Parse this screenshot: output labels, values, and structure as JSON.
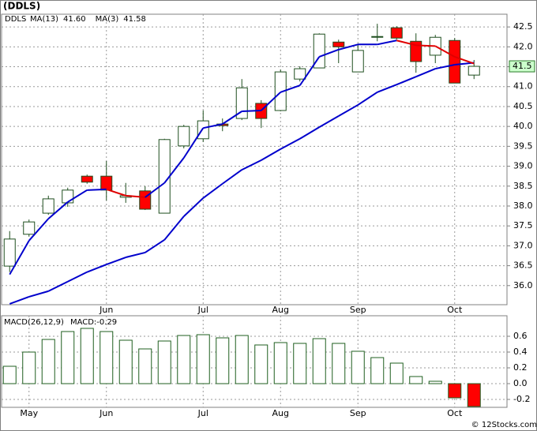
{
  "chart_data": [
    {
      "type": "candlestick",
      "title": "(DDLS)",
      "symbol": "DDLS",
      "categories": [
        null,
        null,
        null,
        null,
        null,
        "Jun",
        null,
        null,
        null,
        null,
        "Jul",
        null,
        null,
        null,
        "Aug",
        null,
        null,
        null,
        "Sep",
        null,
        null,
        null,
        null,
        "Oct",
        null
      ],
      "open": [
        36.49,
        37.29,
        37.82,
        38.08,
        38.75,
        38.75,
        38.22,
        38.38,
        37.82,
        39.51,
        39.69,
        40.06,
        40.2,
        40.58,
        40.4,
        41.19,
        41.47,
        42.12,
        41.37,
        42.24,
        42.48,
        42.14,
        41.79,
        42.16,
        41.29
      ],
      "high": [
        37.37,
        37.66,
        38.26,
        38.46,
        38.79,
        39.13,
        38.58,
        38.5,
        39.69,
        40.04,
        40.4,
        40.2,
        41.19,
        40.66,
        41.43,
        41.51,
        42.34,
        42.18,
        42.08,
        42.58,
        42.52,
        42.34,
        42.3,
        42.22,
        41.67
      ],
      "low": [
        36.34,
        37.23,
        37.78,
        37.98,
        38.56,
        38.14,
        38.08,
        37.9,
        37.82,
        39.45,
        39.61,
        39.88,
        40.16,
        39.96,
        40.38,
        41.13,
        41.47,
        41.59,
        41.37,
        42.14,
        42.18,
        41.35,
        41.59,
        41.09,
        41.19
      ],
      "close": [
        37.17,
        37.6,
        38.18,
        38.4,
        38.6,
        38.4,
        38.26,
        37.92,
        39.67,
        40.0,
        40.14,
        40.02,
        40.97,
        40.2,
        41.37,
        41.45,
        42.32,
        42.0,
        41.91,
        42.26,
        42.22,
        41.63,
        42.24,
        41.09,
        41.51
      ],
      "up_color": "#ffffff",
      "down_color": "#ff0000",
      "edge_color": "#1f4f1f",
      "series": [
        {
          "name": "MA(13)",
          "last_label": "41.60",
          "color": "#0000cc",
          "values": [
            35.54,
            35.72,
            35.86,
            36.1,
            36.34,
            36.53,
            36.71,
            36.83,
            37.15,
            37.74,
            38.2,
            38.56,
            38.91,
            39.15,
            39.43,
            39.69,
            39.98,
            40.26,
            40.54,
            40.86,
            41.05,
            41.25,
            41.45,
            41.55,
            41.6
          ]
        },
        {
          "name": "MA(3)",
          "last_label": "41.58",
          "color": "#0000cc",
          "down_color": "#e00000",
          "values": [
            36.28,
            37.13,
            37.68,
            38.1,
            38.4,
            38.42,
            38.26,
            38.22,
            38.58,
            39.21,
            39.96,
            40.06,
            40.38,
            40.4,
            40.86,
            41.03,
            41.75,
            41.93,
            42.06,
            42.06,
            42.16,
            42.04,
            42.02,
            41.75,
            41.58
          ]
        }
      ],
      "last_price": {
        "value": 41.51,
        "label": "41.5"
      },
      "last_color": "#ccffcc",
      "ylim": [
        35.52,
        42.82
      ],
      "yticks": [
        {
          "value": 36,
          "label": "36.0"
        },
        36.5,
        {
          "value": 37,
          "label": "37.0"
        },
        37.5,
        {
          "value": 38,
          "label": "38.0"
        },
        38.5,
        {
          "value": 39,
          "label": "39.0"
        },
        39.5,
        {
          "value": 40,
          "label": "40.0"
        },
        40.5,
        {
          "value": 41,
          "label": "41.0"
        },
        41.5,
        {
          "value": 42,
          "label": "42.0"
        },
        42.5
      ],
      "grid": true
    },
    {
      "type": "bar",
      "title": "MACD(26,12,9)",
      "legend_label": "MACD:-0.29",
      "categories": [
        null,
        "May",
        null,
        null,
        null,
        "Jun",
        null,
        null,
        null,
        null,
        "Jul",
        null,
        null,
        null,
        "Aug",
        null,
        null,
        null,
        "Sep",
        null,
        null,
        null,
        null,
        "Oct",
        null
      ],
      "values": [
        0.22,
        0.4,
        0.56,
        0.66,
        0.7,
        0.66,
        0.55,
        0.44,
        0.54,
        0.61,
        0.62,
        0.58,
        0.61,
        0.49,
        0.52,
        0.51,
        0.57,
        0.51,
        0.41,
        0.33,
        0.26,
        0.09,
        0.03,
        -0.18,
        -0.29
      ],
      "color": "#ffffff",
      "neg_color": "#ff0000",
      "edge_color": "#1f5f1f",
      "ylim": [
        -0.3,
        0.86
      ],
      "yticks": [
        -0.2,
        {
          "value": 0,
          "label": "0.0"
        },
        0.2,
        0.4,
        0.6
      ],
      "grid": true
    }
  ],
  "credit": "© 12Stocks.com"
}
